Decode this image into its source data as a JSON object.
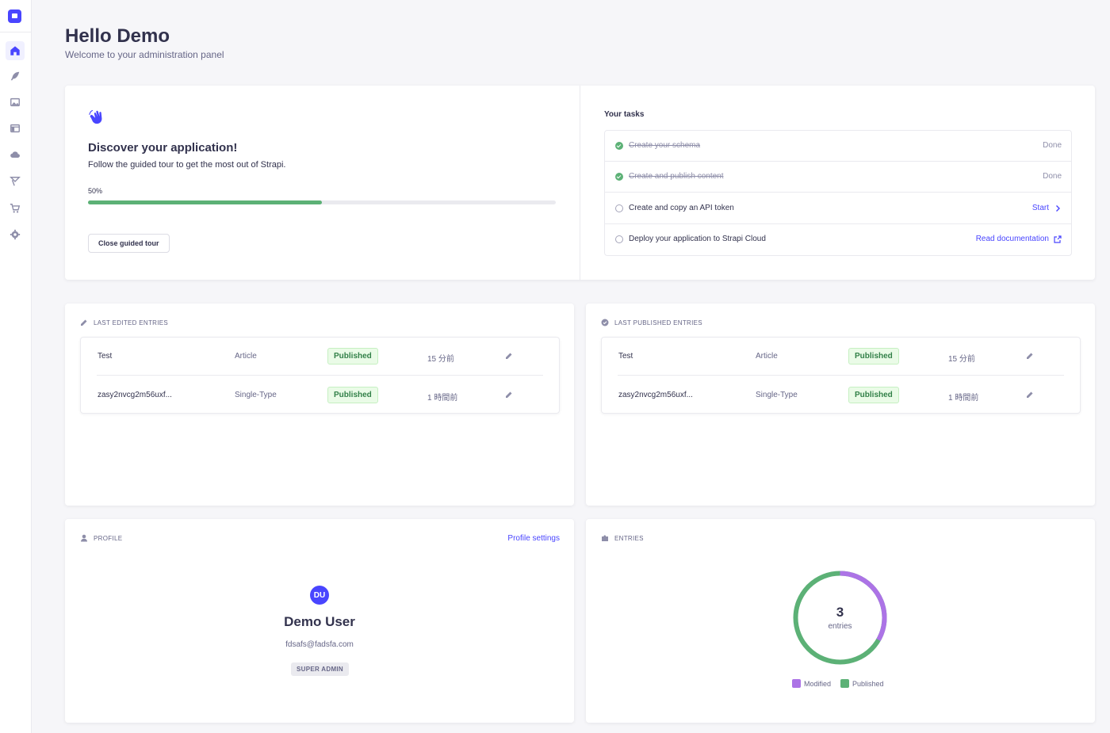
{
  "header": {
    "title": "Hello Demo",
    "subtitle": "Welcome to your administration panel"
  },
  "sidebar": {
    "items": [
      {
        "name": "home-icon"
      },
      {
        "name": "content-manager-icon"
      },
      {
        "name": "media-library-icon"
      },
      {
        "name": "content-type-builder-icon"
      },
      {
        "name": "cloud-icon"
      },
      {
        "name": "deploy-icon"
      },
      {
        "name": "marketplace-icon"
      },
      {
        "name": "settings-icon"
      }
    ]
  },
  "tour": {
    "title": "Discover your application!",
    "description": "Follow the guided tour to get the most out of Strapi.",
    "progress_label": "50%",
    "progress": 0.5,
    "close_label": "Close guided tour"
  },
  "tasks": {
    "title": "Your tasks",
    "items": [
      {
        "label": "Create your schema",
        "status": "Done",
        "done": true
      },
      {
        "label": "Create and publish content",
        "status": "Done",
        "done": true
      },
      {
        "label": "Create and copy an API token",
        "action": "Start",
        "done": false
      },
      {
        "label": "Deploy your application to Strapi Cloud",
        "action": "Read documentation",
        "done": false
      }
    ]
  },
  "last_edited": {
    "title": "LAST EDITED ENTRIES",
    "rows": [
      {
        "title": "Test",
        "type": "Article",
        "status": "Published",
        "time": "15 分前"
      },
      {
        "title": "zasy2nvcg2m56uxf...",
        "type": "Single-Type",
        "status": "Published",
        "time": "1 時間前"
      }
    ]
  },
  "last_published": {
    "title": "LAST PUBLISHED ENTRIES",
    "rows": [
      {
        "title": "Test",
        "type": "Article",
        "status": "Published",
        "time": "15 分前"
      },
      {
        "title": "zasy2nvcg2m56uxf...",
        "type": "Single-Type",
        "status": "Published",
        "time": "1 時間前"
      }
    ]
  },
  "profile": {
    "title": "PROFILE",
    "settings_link": "Profile settings",
    "initials": "DU",
    "name": "Demo User",
    "email": "fdsafs@fadsfa.com",
    "role": "SUPER ADMIN"
  },
  "entries": {
    "title": "ENTRIES",
    "count": "3",
    "count_label": "entries",
    "modified_fraction": 0.333,
    "published_fraction": 0.667,
    "legend": [
      {
        "label": "Modified",
        "color": "#ac73e6"
      },
      {
        "label": "Published",
        "color": "#5cb176"
      }
    ]
  },
  "colors": {
    "primary": "#4945ff",
    "success": "#5cb176",
    "modified": "#ac73e6"
  }
}
